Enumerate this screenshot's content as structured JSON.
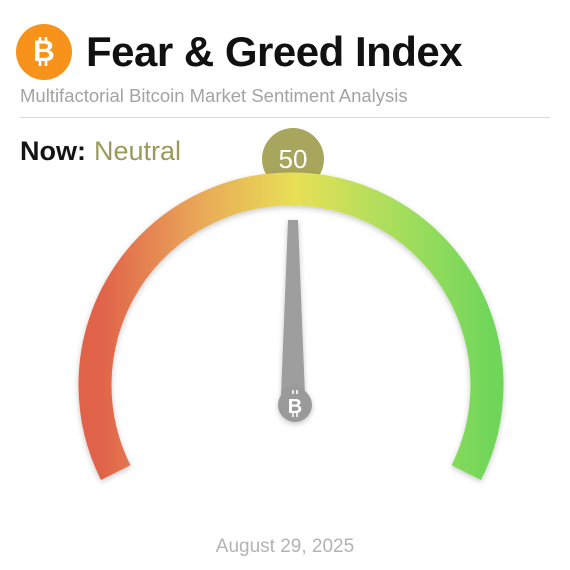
{
  "header": {
    "logo_icon": "bitcoin-icon",
    "logo_color": "#f7931a",
    "title": "Fear & Greed Index",
    "subtitle": "Multifactorial Bitcoin Market Sentiment Analysis"
  },
  "status": {
    "now_label": "Now:",
    "sentiment": "Neutral",
    "sentiment_color": "#9a9a5a"
  },
  "gauge": {
    "value": "50",
    "min": 0,
    "max": 100,
    "colors": {
      "fear": "#e0624a",
      "mid": "#e8e056",
      "greed": "#6fd65a",
      "badge": "#a8a55c",
      "needle": "#9e9e9e"
    },
    "hub_icon": "bitcoin-icon"
  },
  "footer": {
    "date": "August 29, 2025"
  }
}
